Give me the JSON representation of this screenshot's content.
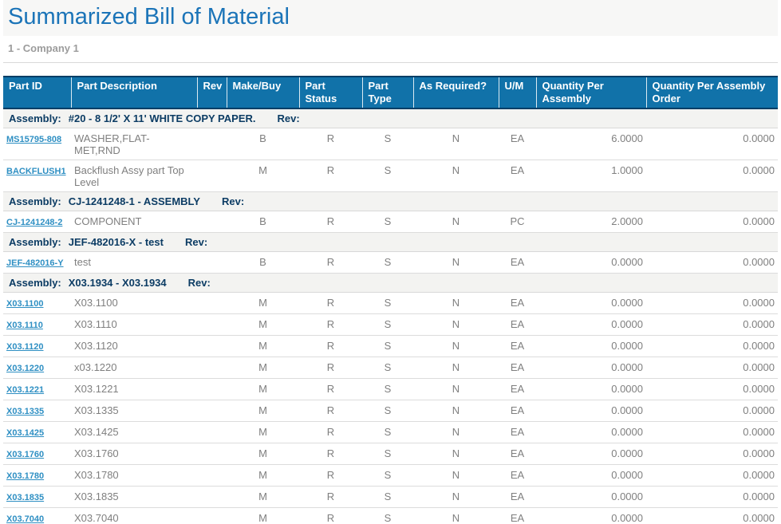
{
  "page": {
    "title": "Summarized Bill of Material",
    "subtitle": "1 - Company 1"
  },
  "colors": {
    "title_text": "#1b74b8",
    "header_bg": "#1172a9",
    "header_border": "#023e66",
    "header_text": "#ffffff",
    "link_text": "#2e8fc3",
    "group_row_bg": "#f3f3f1",
    "group_text": "#0c3c64",
    "body_text": "#7f7f7f"
  },
  "table": {
    "assembly_label": "Assembly:",
    "rev_label": "Rev:",
    "columns": [
      "Part ID",
      "Part Description",
      "Rev",
      "Make/Buy",
      "Part Status",
      "Part Type",
      "As Required?",
      "U/M",
      "Quantity Per Assembly",
      "Quantity Per Assembly Order"
    ],
    "groups": [
      {
        "assembly": "#20 - 8 1/2' X 11' WHITE COPY PAPER.",
        "rows": [
          {
            "part_id": "MS15795-808",
            "description": "WASHER,FLAT-MET,RND",
            "rev": "",
            "make_buy": "B",
            "part_status": "R",
            "part_type": "S",
            "as_required": "N",
            "um": "EA",
            "qty_per_assembly": "6.0000",
            "qty_per_assembly_order": "0.0000"
          },
          {
            "part_id": "BACKFLUSH1",
            "description": "Backflush Assy part Top Level",
            "rev": "",
            "make_buy": "M",
            "part_status": "R",
            "part_type": "S",
            "as_required": "N",
            "um": "EA",
            "qty_per_assembly": "1.0000",
            "qty_per_assembly_order": "0.0000"
          }
        ]
      },
      {
        "assembly": "CJ-1241248-1 - ASSEMBLY",
        "rows": [
          {
            "part_id": "CJ-1241248-2",
            "description": "COMPONENT",
            "rev": "",
            "make_buy": "B",
            "part_status": "R",
            "part_type": "S",
            "as_required": "N",
            "um": "PC",
            "qty_per_assembly": "2.0000",
            "qty_per_assembly_order": "0.0000"
          }
        ]
      },
      {
        "assembly": "JEF-482016-X - test",
        "rows": [
          {
            "part_id": "JEF-482016-Y",
            "description": "test",
            "rev": "",
            "make_buy": "B",
            "part_status": "R",
            "part_type": "S",
            "as_required": "N",
            "um": "EA",
            "qty_per_assembly": "0.0000",
            "qty_per_assembly_order": "0.0000"
          }
        ]
      },
      {
        "assembly": "X03.1934 - X03.1934",
        "rows": [
          {
            "part_id": "X03.1100",
            "description": "X03.1100",
            "rev": "",
            "make_buy": "M",
            "part_status": "R",
            "part_type": "S",
            "as_required": "N",
            "um": "EA",
            "qty_per_assembly": "0.0000",
            "qty_per_assembly_order": "0.0000"
          },
          {
            "part_id": "X03.1110",
            "description": "X03.1110",
            "rev": "",
            "make_buy": "M",
            "part_status": "R",
            "part_type": "S",
            "as_required": "N",
            "um": "EA",
            "qty_per_assembly": "0.0000",
            "qty_per_assembly_order": "0.0000"
          },
          {
            "part_id": "X03.1120",
            "description": "X03.1120",
            "rev": "",
            "make_buy": "M",
            "part_status": "R",
            "part_type": "S",
            "as_required": "N",
            "um": "EA",
            "qty_per_assembly": "0.0000",
            "qty_per_assembly_order": "0.0000"
          },
          {
            "part_id": "X03.1220",
            "description": "x03.1220",
            "rev": "",
            "make_buy": "M",
            "part_status": "R",
            "part_type": "S",
            "as_required": "N",
            "um": "EA",
            "qty_per_assembly": "0.0000",
            "qty_per_assembly_order": "0.0000"
          },
          {
            "part_id": "X03.1221",
            "description": "X03.1221",
            "rev": "",
            "make_buy": "M",
            "part_status": "R",
            "part_type": "S",
            "as_required": "N",
            "um": "EA",
            "qty_per_assembly": "0.0000",
            "qty_per_assembly_order": "0.0000"
          },
          {
            "part_id": "X03.1335",
            "description": "X03.1335",
            "rev": "",
            "make_buy": "M",
            "part_status": "R",
            "part_type": "S",
            "as_required": "N",
            "um": "EA",
            "qty_per_assembly": "0.0000",
            "qty_per_assembly_order": "0.0000"
          },
          {
            "part_id": "X03.1425",
            "description": "X03.1425",
            "rev": "",
            "make_buy": "M",
            "part_status": "R",
            "part_type": "S",
            "as_required": "N",
            "um": "EA",
            "qty_per_assembly": "0.0000",
            "qty_per_assembly_order": "0.0000"
          },
          {
            "part_id": "X03.1760",
            "description": "X03.1760",
            "rev": "",
            "make_buy": "M",
            "part_status": "R",
            "part_type": "S",
            "as_required": "N",
            "um": "EA",
            "qty_per_assembly": "0.0000",
            "qty_per_assembly_order": "0.0000"
          },
          {
            "part_id": "X03.1780",
            "description": "X03.1780",
            "rev": "",
            "make_buy": "M",
            "part_status": "R",
            "part_type": "S",
            "as_required": "N",
            "um": "EA",
            "qty_per_assembly": "0.0000",
            "qty_per_assembly_order": "0.0000"
          },
          {
            "part_id": "X03.1835",
            "description": "X03.1835",
            "rev": "",
            "make_buy": "M",
            "part_status": "R",
            "part_type": "S",
            "as_required": "N",
            "um": "EA",
            "qty_per_assembly": "0.0000",
            "qty_per_assembly_order": "0.0000"
          },
          {
            "part_id": "X03.7040",
            "description": "X03.7040",
            "rev": "",
            "make_buy": "M",
            "part_status": "R",
            "part_type": "S",
            "as_required": "N",
            "um": "EA",
            "qty_per_assembly": "0.0000",
            "qty_per_assembly_order": "0.0000"
          }
        ]
      }
    ]
  }
}
